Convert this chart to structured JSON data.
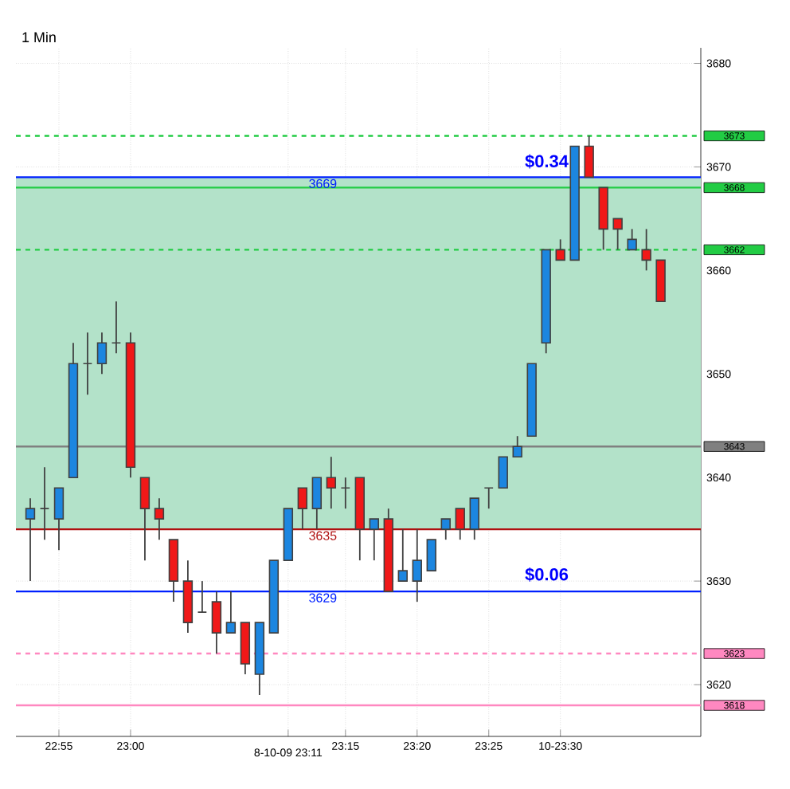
{
  "chart_data": {
    "type": "candlestick",
    "title": "1 Min",
    "categories": [
      null,
      null,
      "22:55",
      null,
      null,
      null,
      null,
      "23:00",
      null,
      null,
      null,
      null,
      null,
      null,
      null,
      null,
      null,
      null,
      "8-10-09 23:11",
      null,
      null,
      null,
      "23:15",
      null,
      null,
      null,
      null,
      "23:20",
      null,
      null,
      null,
      null,
      "23:25",
      null,
      null,
      null,
      null,
      "10-23:30",
      null,
      null,
      null,
      null,
      null,
      null,
      null
    ],
    "ohlc": [
      [
        3636,
        3638,
        3630,
        3637
      ],
      [
        3637,
        3641,
        3634,
        3637
      ],
      [
        3636,
        3639,
        3633,
        3639
      ],
      [
        3640,
        3653,
        3640,
        3651
      ],
      [
        3651,
        3654,
        3648,
        3651
      ],
      [
        3651,
        3654,
        3650,
        3653
      ],
      [
        3653,
        3657,
        3652,
        3653
      ],
      [
        3653,
        3654,
        3640,
        3641
      ],
      [
        3640,
        3640,
        3632,
        3637
      ],
      [
        3637,
        3638,
        3634,
        3636
      ],
      [
        3634,
        3634,
        3628,
        3630
      ],
      [
        3630,
        3632,
        3625,
        3626
      ],
      [
        3627,
        3630,
        3627,
        3627
      ],
      [
        3628,
        3629,
        3623,
        3625
      ],
      [
        3625,
        3629,
        3625,
        3626
      ],
      [
        3626,
        3626,
        3621,
        3622
      ],
      [
        3621,
        3626,
        3619,
        3626
      ],
      [
        3625,
        3632,
        3625,
        3632
      ],
      [
        3632,
        3637,
        3632,
        3637
      ],
      [
        3639,
        3639,
        3635,
        3637
      ],
      [
        3637,
        3640,
        3635,
        3640
      ],
      [
        3640,
        3642,
        3637,
        3639
      ],
      [
        3639,
        3640,
        3637,
        3639
      ],
      [
        3640,
        3640,
        3632,
        3635
      ],
      [
        3635,
        3636,
        3632,
        3636
      ],
      [
        3636,
        3637,
        3629,
        3629
      ],
      [
        3630,
        3635,
        3630,
        3631
      ],
      [
        3630,
        3635,
        3628,
        3632
      ],
      [
        3631,
        3634,
        3631,
        3634
      ],
      [
        3635,
        3636,
        3634,
        3636
      ],
      [
        3637,
        3637,
        3634,
        3635
      ],
      [
        3635,
        3638,
        3634,
        3638
      ],
      [
        3639,
        3639,
        3637,
        3639
      ],
      [
        3639,
        3642,
        3639,
        3642
      ],
      [
        3642,
        3644,
        3642,
        3643
      ],
      [
        3644,
        3651,
        3644,
        3651
      ],
      [
        3653,
        3662,
        3652,
        3662
      ],
      [
        3662,
        3663,
        3661,
        3661
      ],
      [
        3661,
        3672,
        3661,
        3672
      ],
      [
        3672,
        3673,
        3669,
        3669
      ],
      [
        3668,
        3668,
        3662,
        3664
      ],
      [
        3665,
        3665,
        3662,
        3664
      ],
      [
        3662,
        3664,
        3662,
        3663
      ],
      [
        3662,
        3664,
        3660,
        3661
      ],
      [
        3661,
        3661,
        3657,
        3657
      ]
    ],
    "colors": [
      "#1c86e0",
      "#404040",
      "#1c86e0",
      "#1c86e0",
      "#404040",
      "#1c86e0",
      "#404040",
      "#f01818",
      "#f01818",
      "#f01818",
      "#f01818",
      "#f01818",
      "#404040",
      "#f01818",
      "#1c86e0",
      "#f01818",
      "#1c86e0",
      "#1c86e0",
      "#1c86e0",
      "#f01818",
      "#1c86e0",
      "#f01818",
      "#404040",
      "#f01818",
      "#1c86e0",
      "#f01818",
      "#1c86e0",
      "#1c86e0",
      "#1c86e0",
      "#1c86e0",
      "#f01818",
      "#1c86e0",
      "#404040",
      "#1c86e0",
      "#1c86e0",
      "#1c86e0",
      "#1c86e0",
      "#f01818",
      "#1c86e0",
      "#f01818",
      "#f01818",
      "#f01818",
      "#1c86e0",
      "#f01818",
      "#f01818"
    ],
    "ylim": [
      3615,
      3681.5
    ],
    "yticks": [
      3620,
      3630,
      3640,
      3650,
      3660,
      3670,
      3680
    ],
    "grid": true,
    "bands": [
      {
        "axis": "y",
        "from": 3635,
        "to": 3669,
        "color": "#b3e2c9"
      }
    ],
    "ref_lines": [
      {
        "axis": "y",
        "value": 3673,
        "label": "3673",
        "color": "#22cc44",
        "line_style": "dashed"
      },
      {
        "axis": "y",
        "value": 3668,
        "label": "3668",
        "color": "#22cc44",
        "line_style": "solid"
      },
      {
        "axis": "y",
        "value": 3662,
        "label": "3662",
        "color": "#22cc44",
        "line_style": "dashed"
      },
      {
        "axis": "y",
        "value": 3643,
        "label": "3643",
        "color": "#808080",
        "line_style": "solid"
      },
      {
        "axis": "y",
        "value": 3623,
        "label": "3623",
        "color": "#ff88c0",
        "line_style": "dashed"
      },
      {
        "axis": "y",
        "value": 3618,
        "label": "3618",
        "color": "#ff88c0",
        "line_style": "solid"
      },
      {
        "axis": "y",
        "value": 3669,
        "color": "#0020ff",
        "line_style": "solid"
      },
      {
        "axis": "y",
        "value": 3635,
        "color": "#b01010",
        "line_style": "solid"
      },
      {
        "axis": "y",
        "value": 3629,
        "color": "#0020ff",
        "line_style": "solid"
      }
    ],
    "annotations": [
      {
        "text": "3669",
        "x": "8-10-09 23:11",
        "y": 3669
      },
      {
        "text": "3635",
        "x": "8-10-09 23:11",
        "y": 3635
      },
      {
        "text": "3629",
        "x": "8-10-09 23:11",
        "y": 3629
      },
      "$0.34",
      "$0.06"
    ]
  }
}
